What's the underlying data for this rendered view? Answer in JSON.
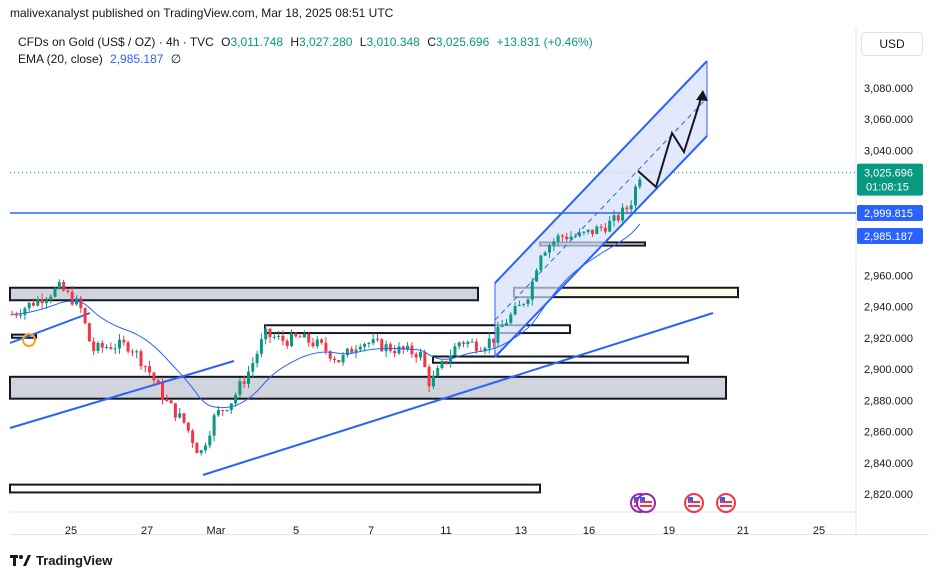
{
  "header": {
    "published": "malivexanalyst published on TradingView.com, Mar 18, 2025 08:51 UTC"
  },
  "legend": {
    "symbol": "CFDs on Gold (US$ / OZ) · 4h · TVC",
    "o_label": "O",
    "o": "3,011.748",
    "h_label": "H",
    "h": "3,027.280",
    "l_label": "L",
    "l": "3,010.348",
    "c_label": "C",
    "c": "3,025.696",
    "change": "+13.831 (+0.46%)",
    "ema_label": "EMA (20, close)",
    "ema_value": "2,985.187",
    "ema_extra": "∅"
  },
  "currency_button": "USD",
  "footer": {
    "brand": "TradingView"
  },
  "colors": {
    "up": "#089981",
    "down": "#f23645",
    "line": "#2962ff",
    "channel_fill": "#d6e0fb"
  },
  "chart_data": {
    "type": "candlestick",
    "y_ticks": [
      "2,820.000",
      "2,840.000",
      "2,860.000",
      "2,880.000",
      "2,900.000",
      "2,920.000",
      "2,940.000",
      "2,960.000",
      "3,060.000",
      "3,080.000"
    ],
    "y_tick_values": [
      2820,
      2840,
      2860,
      2880,
      2900,
      2920,
      2940,
      2960,
      3060,
      3080
    ],
    "x_ticks": [
      "25",
      "27",
      "Mar",
      "5",
      "7",
      "11",
      "13",
      "16",
      "19",
      "21",
      "25"
    ],
    "ylim": [
      2812,
      3100
    ],
    "price_labels": [
      {
        "text": "3,025.696",
        "sub": "01:08:15",
        "value": 3025.696,
        "color": "#089981"
      },
      {
        "text": "2,999.815",
        "value": 2999.815,
        "color": "#2962ff"
      },
      {
        "text": "2,985.187",
        "value": 2985.187,
        "color": "#2962ff"
      }
    ],
    "horizontal_line": 2999.815,
    "last_price": 3025.696
  }
}
